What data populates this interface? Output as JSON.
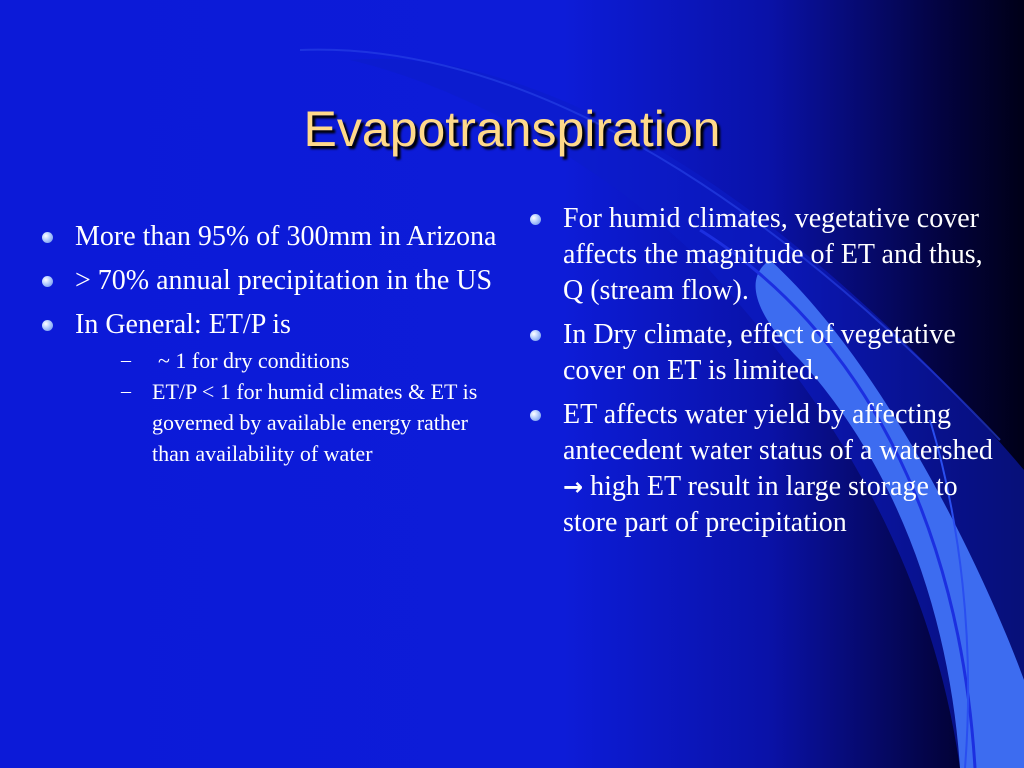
{
  "slide": {
    "title": "Evapotranspiration",
    "left": {
      "bullets": [
        "More than 95% of 300mm in Arizona",
        "> 70% annual precipitation in the US",
        "In General: ET/P is"
      ],
      "sub_bullets": [
        "~ 1 for dry conditions",
        "ET/P < 1 for humid climates & ET is governed by available energy rather than availability of water"
      ]
    },
    "right": {
      "bullets": [
        "For humid climates, vegetative cover affects the magnitude of ET and thus, Q (stream flow).",
        "In Dry climate, effect of vegetative cover on ET is limited."
      ],
      "bullet3_part1": "ET affects water yield by affecting antecedent water status of a watershed",
      "bullet3_arrow": "→",
      "bullet3_part2": "high ET result in large storage to store part of precipitation"
    },
    "colors": {
      "background": "#0c1ad8",
      "title": "#ffd98a",
      "text": "#ffffff",
      "accent_wave": "#3d6cf0"
    }
  }
}
